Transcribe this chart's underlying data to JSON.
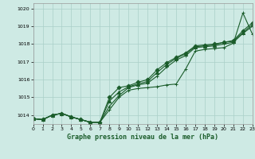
{
  "title": "Graphe pression niveau de la mer (hPa)",
  "background_color": "#ceeae4",
  "grid_color": "#aacfc8",
  "line_color": "#1a5c2a",
  "xlim": [
    0,
    23
  ],
  "ylim": [
    1013.5,
    1020.3
  ],
  "yticks": [
    1014,
    1015,
    1016,
    1017,
    1018,
    1019,
    1020
  ],
  "xticks": [
    0,
    1,
    2,
    3,
    4,
    5,
    6,
    7,
    8,
    9,
    10,
    11,
    12,
    13,
    14,
    15,
    16,
    17,
    18,
    19,
    20,
    21,
    22,
    23
  ],
  "series": [
    {
      "y": [
        1013.8,
        1013.75,
        1014.0,
        1014.1,
        1013.9,
        1013.75,
        1013.6,
        1013.6,
        1014.3,
        1015.0,
        1015.4,
        1015.5,
        1015.55,
        1015.6,
        1015.7,
        1015.75,
        1016.6,
        1017.6,
        1017.7,
        1017.75,
        1017.8,
        1018.05,
        1019.75,
        1018.55
      ],
      "marker": "+",
      "ms": 3.5,
      "lw": 0.8
    },
    {
      "y": [
        1013.8,
        1013.75,
        1014.0,
        1014.1,
        1013.9,
        1013.75,
        1013.6,
        1013.6,
        1014.5,
        1015.1,
        1015.55,
        1015.7,
        1015.8,
        1016.2,
        1016.7,
        1017.1,
        1017.35,
        1017.8,
        1017.85,
        1017.9,
        1018.0,
        1018.1,
        1018.6,
        1019.0
      ],
      "marker": "+",
      "ms": 3.5,
      "lw": 0.8
    },
    {
      "y": [
        1013.8,
        1013.75,
        1014.0,
        1014.1,
        1013.9,
        1013.75,
        1013.6,
        1013.6,
        1014.8,
        1015.3,
        1015.6,
        1015.75,
        1015.9,
        1016.4,
        1016.85,
        1017.2,
        1017.45,
        1017.85,
        1017.9,
        1017.95,
        1018.1,
        1018.15,
        1018.65,
        1019.1
      ],
      "marker": "^",
      "ms": 3.0,
      "lw": 0.8
    },
    {
      "y": [
        1013.8,
        1013.75,
        1014.0,
        1014.1,
        1013.9,
        1013.75,
        1013.6,
        1013.6,
        1015.0,
        1015.55,
        1015.65,
        1015.85,
        1016.0,
        1016.55,
        1016.95,
        1017.25,
        1017.5,
        1017.9,
        1017.95,
        1018.0,
        1018.1,
        1018.2,
        1018.75,
        1019.2
      ],
      "marker": "D",
      "ms": 2.5,
      "lw": 0.8
    }
  ]
}
